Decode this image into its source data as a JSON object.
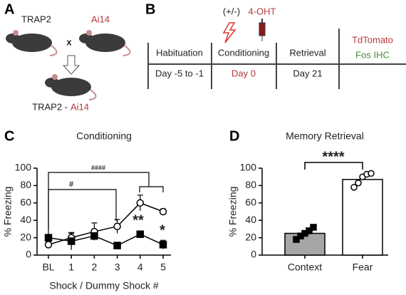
{
  "panels": {
    "a": {
      "label": "A",
      "parent1": "TRAP2",
      "cross": "x",
      "parent2": "Ai14",
      "offspring_left": "TRAP2 -",
      "offspring_right": "Ai14"
    },
    "b": {
      "label": "B",
      "switch": "(+/-)",
      "drug": "4-OHT",
      "stages": [
        {
          "name": "Habituation",
          "day": "Day -5 to -1"
        },
        {
          "name": "Conditioning",
          "day": "Day 0"
        },
        {
          "name": "Retrieval",
          "day": "Day 21"
        }
      ],
      "readouts": [
        "TdTomato",
        "Fos IHC"
      ]
    }
  },
  "chart_data": [
    {
      "panel_label": "C",
      "type": "line",
      "title": "Conditioning",
      "x_label": "Shock / Dummy Shock #",
      "y_label": "% Freezing",
      "categories": [
        "BL",
        "1",
        "2",
        "3",
        "4",
        "5"
      ],
      "ylim": [
        0,
        100
      ],
      "yticks": [
        0,
        20,
        40,
        60,
        80,
        100
      ],
      "series": [
        {
          "marker": "circle",
          "color": "#000000",
          "fill": "#ffffff",
          "values": [
            12,
            20,
            27,
            33,
            60,
            50
          ],
          "errors": [
            4,
            5,
            10,
            8,
            9,
            3
          ]
        },
        {
          "marker": "square",
          "color": "#000000",
          "fill": "#000000",
          "values": [
            20,
            16,
            22,
            11,
            24,
            12
          ],
          "errors": [
            3,
            10,
            5,
            3,
            3,
            5
          ]
        }
      ],
      "annotations": [
        "####",
        "#",
        "**",
        "*"
      ]
    },
    {
      "panel_label": "D",
      "type": "bar",
      "title": "Memory Retrieval",
      "y_label": "% Freezing",
      "categories": [
        "Context",
        "Fear"
      ],
      "values": [
        25,
        87
      ],
      "colors": [
        "#a6a6a6",
        "#ffffff"
      ],
      "points": [
        [
          18,
          22,
          25,
          28,
          32
        ],
        [
          78,
          83,
          90,
          93,
          94
        ]
      ],
      "point_markers": [
        "square",
        "circle"
      ],
      "ylim": [
        0,
        100
      ],
      "yticks": [
        0,
        20,
        40,
        60,
        80,
        100
      ],
      "annotation": "****"
    }
  ]
}
